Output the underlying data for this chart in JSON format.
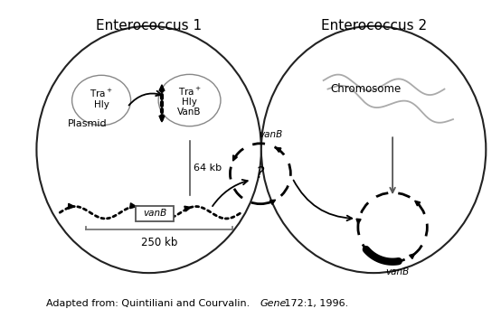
{
  "title1": "Enterococcus 1",
  "title2": "Enterococcus 2",
  "caption_pre": "Adapted from: Quintiliani and Courvalin.  ",
  "caption_italic": "Gene",
  "caption_post": " 172:1, 1996.",
  "bg_color": "#ffffff",
  "outline_color": "#222222",
  "gray_color": "#aaaaaa",
  "text_color": "#000000"
}
